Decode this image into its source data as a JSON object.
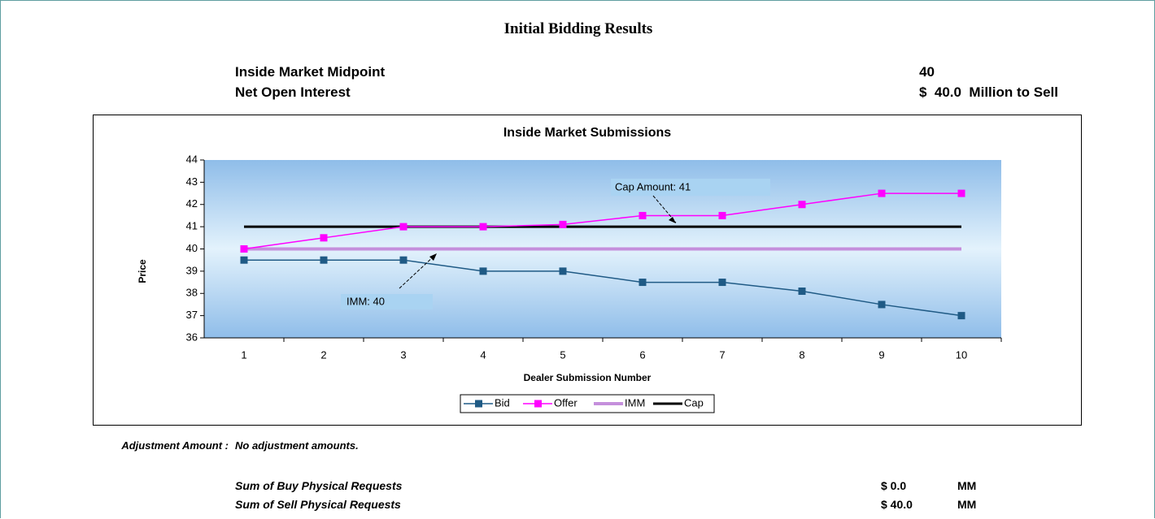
{
  "header": {
    "title": "Initial Bidding Results",
    "rows": [
      {
        "label": "Inside Market Midpoint",
        "value": "40"
      },
      {
        "label": "Net Open Interest",
        "value": "$  40.0  Million to Sell"
      }
    ]
  },
  "chart_data": {
    "type": "line",
    "title": "Inside Market Submissions",
    "x_label": "Dealer Submission Number",
    "y_label": "Price",
    "categories": [
      1,
      2,
      3,
      4,
      5,
      6,
      7,
      8,
      9,
      10
    ],
    "series": [
      {
        "name": "Bid",
        "color": "#1f5a85",
        "width": 1.5,
        "markers": true,
        "values": [
          39.5,
          39.5,
          39.5,
          39,
          39,
          38.5,
          38.5,
          38.1,
          37.5,
          37
        ]
      },
      {
        "name": "Offer",
        "color": "#ff00ff",
        "width": 1.5,
        "markers": true,
        "values": [
          40,
          40.5,
          41,
          41,
          41.1,
          41.5,
          41.5,
          42,
          42.5,
          42.5
        ]
      },
      {
        "name": "IMM",
        "color": "#c58fdc",
        "width": 4,
        "markers": false,
        "values": [
          40,
          40,
          40,
          40,
          40,
          40,
          40,
          40,
          40,
          40
        ]
      },
      {
        "name": "Cap",
        "color": "#000000",
        "width": 3,
        "markers": false,
        "values": [
          41,
          41,
          41,
          41,
          41,
          41,
          41,
          41,
          41,
          41
        ]
      }
    ],
    "ylim": [
      36,
      44
    ],
    "yticks": [
      36,
      37,
      38,
      39,
      40,
      41,
      42,
      43,
      44
    ],
    "annotations": [
      "Cap Amount: 41",
      "IMM: 40"
    ],
    "legend": "bottom"
  },
  "adjustment": {
    "label": "Adjustment Amount :",
    "text": "No adjustment amounts."
  },
  "summary": {
    "rows": [
      {
        "label": "Sum of Buy Physical Requests",
        "value": "$ 0.0",
        "unit": "MM"
      },
      {
        "label": "Sum of Sell Physical Requests",
        "value": "$ 40.0",
        "unit": "MM"
      }
    ]
  }
}
